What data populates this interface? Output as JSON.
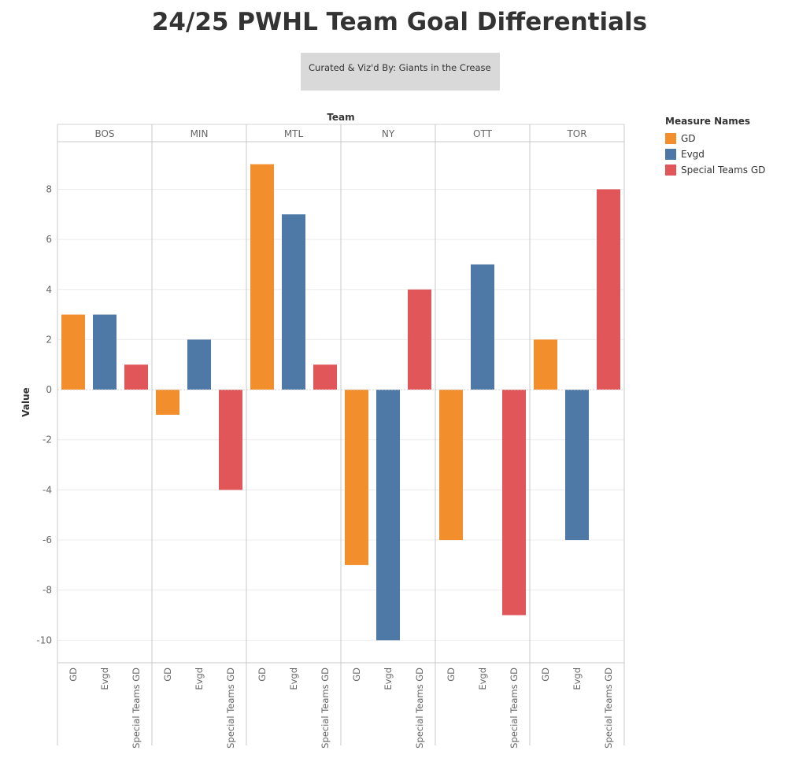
{
  "title": "24/25 PWHL Team Goal Differentials",
  "credit": "Curated & Viz'd By: Giants in the Crease",
  "legend": {
    "title": "Measure Names",
    "items": [
      {
        "label": "GD",
        "color": "#f28e2b"
      },
      {
        "label": "Evgd",
        "color": "#4e79a7"
      },
      {
        "label": "Special Teams GD",
        "color": "#e15759"
      }
    ]
  },
  "chart_data": {
    "type": "bar",
    "column_header_title": "Team",
    "xlabel": "",
    "ylabel": "Value",
    "ylim": [
      -10.9,
      9.9
    ],
    "yticks": [
      8,
      6,
      4,
      2,
      0,
      -2,
      -4,
      -6,
      -8,
      -10
    ],
    "grid": true,
    "legend_position": "right",
    "teams": [
      "BOS",
      "MIN",
      "MTL",
      "NY",
      "OTT",
      "TOR"
    ],
    "measures": [
      "GD",
      "Evgd",
      "Special Teams GD"
    ],
    "series": [
      {
        "name": "GD",
        "color": "#f28e2b",
        "values": [
          3,
          -1,
          9,
          -7,
          -6,
          2
        ]
      },
      {
        "name": "Evgd",
        "color": "#4e79a7",
        "values": [
          3,
          2,
          7,
          -10,
          5,
          -6
        ]
      },
      {
        "name": "Special Teams GD",
        "color": "#e15759",
        "values": [
          1,
          -4,
          1,
          4,
          -9,
          8
        ]
      }
    ]
  }
}
